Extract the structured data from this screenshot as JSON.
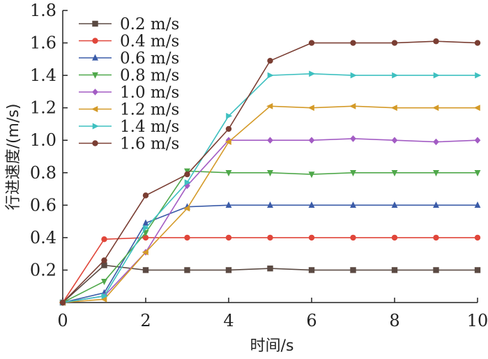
{
  "chart_data": {
    "type": "line",
    "xlabel": "时间/s",
    "ylabel": "行进速度/(m/s)",
    "xlim": [
      0,
      10
    ],
    "ylim": [
      0,
      1.8
    ],
    "x_ticks": [
      0,
      2,
      4,
      6,
      8,
      10
    ],
    "y_ticks": [
      0.2,
      0.4,
      0.6,
      0.8,
      1.0,
      1.2,
      1.4,
      1.6,
      1.8
    ],
    "x_tick_labels": [
      "0",
      "2",
      "4",
      "6",
      "8",
      "10"
    ],
    "y_tick_labels": [
      "0.2",
      "0.4",
      "0.6",
      "0.8",
      "1.0",
      "1.2",
      "1.4",
      "1.6",
      "1.8"
    ],
    "grid": false,
    "legend_position": "top-left",
    "x": [
      0,
      1,
      2,
      3,
      4,
      5,
      6,
      7,
      8,
      9,
      10
    ],
    "series": [
      {
        "name": "0.2 m/s",
        "color": "#5b4a43",
        "marker": "square",
        "values": [
          0,
          0.23,
          0.2,
          0.2,
          0.2,
          0.21,
          0.2,
          0.2,
          0.2,
          0.2,
          0.2
        ]
      },
      {
        "name": "0.4 m/s",
        "color": "#e0463a",
        "marker": "circle",
        "values": [
          0,
          0.39,
          0.4,
          0.4,
          0.4,
          0.4,
          0.4,
          0.4,
          0.4,
          0.4,
          0.4
        ]
      },
      {
        "name": "0.6 m/s",
        "color": "#3a5ba8",
        "marker": "triangle-up",
        "values": [
          0,
          0.06,
          0.49,
          0.59,
          0.6,
          0.6,
          0.6,
          0.6,
          0.6,
          0.6,
          0.6
        ]
      },
      {
        "name": "0.8 m/s",
        "color": "#4fa84a",
        "marker": "triangle-down",
        "values": [
          0,
          0.13,
          0.43,
          0.81,
          0.8,
          0.8,
          0.79,
          0.8,
          0.8,
          0.8,
          0.8
        ]
      },
      {
        "name": "1.0 m/s",
        "color": "#a35cc4",
        "marker": "diamond",
        "values": [
          0,
          0.04,
          0.31,
          0.72,
          1.0,
          1.0,
          1.0,
          1.01,
          1.0,
          0.99,
          1.0
        ]
      },
      {
        "name": "1.2 m/s",
        "color": "#d49a28",
        "marker": "triangle-left",
        "values": [
          0,
          0.02,
          0.31,
          0.58,
          0.99,
          1.21,
          1.2,
          1.21,
          1.2,
          1.2,
          1.2
        ]
      },
      {
        "name": "1.4 m/s",
        "color": "#3ec0c0",
        "marker": "triangle-right",
        "values": [
          0,
          0.04,
          0.46,
          0.74,
          1.15,
          1.4,
          1.41,
          1.4,
          1.4,
          1.4,
          1.4
        ]
      },
      {
        "name": "1.6 m/s",
        "color": "#7a3e33",
        "marker": "circle",
        "values": [
          0,
          0.26,
          0.66,
          0.79,
          1.07,
          1.49,
          1.6,
          1.6,
          1.6,
          1.61,
          1.6
        ]
      }
    ]
  }
}
